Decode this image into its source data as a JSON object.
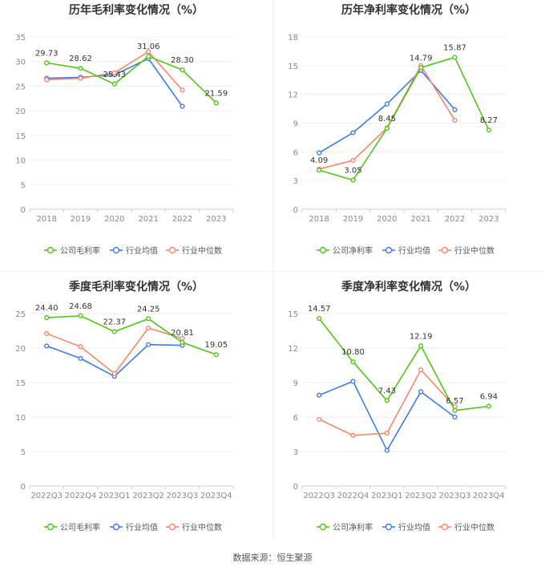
{
  "colors": {
    "company": "#52c41a",
    "avg": "#3f7be6",
    "median": "#f4876a"
  },
  "legend": {
    "company_gross": "公司毛利率",
    "company_net": "公司净利率",
    "avg": "行业均值",
    "median": "行业中位数"
  },
  "source_text": "数据来源：恒生聚源",
  "chart_data": [
    {
      "type": "line",
      "title": "历年毛利率变化情况（%）",
      "categories": [
        "2018",
        "2019",
        "2020",
        "2021",
        "2022",
        "2023"
      ],
      "ylim": [
        0,
        35
      ],
      "yticks": [
        0,
        5,
        10,
        15,
        20,
        25,
        30,
        35
      ],
      "series": [
        {
          "name": "公司毛利率",
          "key": "company",
          "values": [
            29.73,
            28.62,
            25.43,
            31.06,
            28.3,
            21.59
          ],
          "labels": [
            "29.73",
            "28.62",
            "25.43",
            "31.06",
            "28.30",
            "21.59"
          ]
        },
        {
          "name": "行业均值",
          "key": "avg",
          "values": [
            26.6,
            26.8,
            27.3,
            30.6,
            20.9,
            null
          ]
        },
        {
          "name": "行业中位数",
          "key": "median",
          "values": [
            26.3,
            26.6,
            27.7,
            32.0,
            24.2,
            null
          ]
        }
      ]
    },
    {
      "type": "line",
      "title": "历年净利率变化情况（%）",
      "categories": [
        "2018",
        "2019",
        "2020",
        "2021",
        "2022",
        "2023"
      ],
      "ylim": [
        0,
        18
      ],
      "yticks": [
        0,
        3,
        6,
        9,
        12,
        15,
        18
      ],
      "series": [
        {
          "name": "公司净利率",
          "key": "company",
          "values": [
            4.09,
            3.05,
            8.45,
            14.79,
            15.87,
            8.27
          ],
          "labels": [
            "4.09",
            "3.05",
            "8.45",
            "14.79",
            "15.87",
            "8.27"
          ]
        },
        {
          "name": "行业均值",
          "key": "avg",
          "values": [
            5.9,
            8.0,
            11.0,
            14.5,
            10.4,
            null
          ]
        },
        {
          "name": "行业中位数",
          "key": "median",
          "values": [
            4.2,
            5.1,
            8.5,
            15.0,
            9.3,
            null
          ]
        }
      ]
    },
    {
      "type": "line",
      "title": "季度毛利率变化情况（%）",
      "categories": [
        "2022Q3",
        "2022Q4",
        "2023Q1",
        "2023Q2",
        "2023Q3",
        "2023Q4"
      ],
      "ylim": [
        0,
        25
      ],
      "yticks": [
        0,
        5,
        10,
        15,
        20,
        25
      ],
      "series": [
        {
          "name": "公司毛利率",
          "key": "company",
          "values": [
            24.4,
            24.68,
            22.37,
            24.25,
            20.81,
            19.05
          ],
          "labels": [
            "24.40",
            "24.68",
            "22.37",
            "24.25",
            "20.81",
            "19.05"
          ]
        },
        {
          "name": "行业均值",
          "key": "avg",
          "values": [
            20.3,
            18.5,
            15.9,
            20.5,
            20.4,
            null
          ]
        },
        {
          "name": "行业中位数",
          "key": "median",
          "values": [
            22.1,
            20.2,
            16.3,
            22.9,
            21.4,
            null
          ]
        }
      ]
    },
    {
      "type": "line",
      "title": "季度净利率变化情况（%）",
      "categories": [
        "2022Q3",
        "2022Q4",
        "2023Q1",
        "2023Q2",
        "2023Q3",
        "2023Q4"
      ],
      "ylim": [
        0,
        15
      ],
      "yticks": [
        0,
        3,
        6,
        9,
        12,
        15
      ],
      "series": [
        {
          "name": "公司净利率",
          "key": "company",
          "values": [
            14.57,
            10.8,
            7.43,
            12.19,
            6.57,
            6.94
          ],
          "labels": [
            "14.57",
            "10.80",
            "7.43",
            "12.19",
            "6.57",
            "6.94"
          ]
        },
        {
          "name": "行业均值",
          "key": "avg",
          "values": [
            7.9,
            9.1,
            3.1,
            8.2,
            6.0,
            null
          ]
        },
        {
          "name": "行业中位数",
          "key": "median",
          "values": [
            5.8,
            4.4,
            4.6,
            10.1,
            6.9,
            null
          ]
        }
      ]
    }
  ]
}
